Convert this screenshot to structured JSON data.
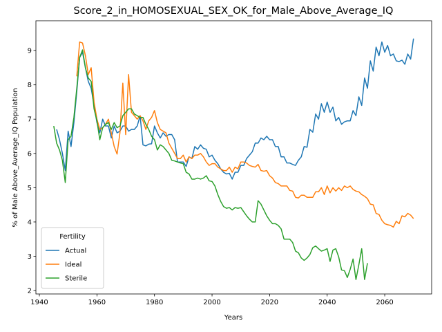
{
  "chart_data": {
    "type": "line",
    "title": "Score_2_in_HOMOSEXUAL_SEX_OK_for_Male_Above_Average_IQ",
    "x_label": "Years",
    "y_label": "% of Male Above_Average_IQ Population",
    "x": [
      1945,
      1946,
      1947,
      1948,
      1949,
      1950,
      1951,
      1952,
      1953,
      1954,
      1955,
      1956,
      1957,
      1958,
      1959,
      1960,
      1961,
      1962,
      1963,
      1964,
      1965,
      1966,
      1967,
      1968,
      1969,
      1970,
      1971,
      1972,
      1973,
      1974,
      1975,
      1976,
      1977,
      1978,
      1979,
      1980,
      1981,
      1982,
      1983,
      1984,
      1985,
      1986,
      1987,
      1988,
      1989,
      1990,
      1991,
      1992,
      1993,
      1994,
      1995,
      1996,
      1997,
      1998,
      1999,
      2000,
      2001,
      2002,
      2003,
      2004,
      2005,
      2006,
      2007,
      2008,
      2009,
      2010,
      2011,
      2012,
      2013,
      2014,
      2015,
      2016,
      2017,
      2018,
      2019,
      2020,
      2021,
      2022,
      2023,
      2024,
      2025,
      2026,
      2027,
      2028,
      2029,
      2030,
      2031,
      2032,
      2033,
      2034,
      2035,
      2036,
      2037,
      2038,
      2039,
      2040,
      2041,
      2042,
      2043,
      2044,
      2045,
      2046,
      2047,
      2048,
      2049,
      2050,
      2051,
      2052,
      2053,
      2054,
      2055,
      2056,
      2057,
      2058,
      2059,
      2060,
      2061,
      2062,
      2063,
      2064,
      2065,
      2066,
      2067,
      2068,
      2069,
      2070
    ],
    "series": [
      {
        "name": "Actual",
        "color": "#1f77b4",
        "values": [
          null,
          6.7,
          6.4,
          6.0,
          5.5,
          6.65,
          6.2,
          6.9,
          7.8,
          8.8,
          8.95,
          8.5,
          8.1,
          7.9,
          7.4,
          6.9,
          6.6,
          7.0,
          6.8,
          6.8,
          6.45,
          6.8,
          6.6,
          6.65,
          6.8,
          6.8,
          6.65,
          6.7,
          6.7,
          6.8,
          7.1,
          6.25,
          6.22,
          6.27,
          6.28,
          6.8,
          6.6,
          6.45,
          6.6,
          6.5,
          6.55,
          6.55,
          6.4,
          5.75,
          5.75,
          5.75,
          5.62,
          5.9,
          5.85,
          6.2,
          6.12,
          6.25,
          6.15,
          6.12,
          5.9,
          5.95,
          5.8,
          5.7,
          5.55,
          5.45,
          5.4,
          5.42,
          5.25,
          5.45,
          5.45,
          5.65,
          5.65,
          5.85,
          5.95,
          6.05,
          6.3,
          6.3,
          6.45,
          6.4,
          6.5,
          6.4,
          6.4,
          6.2,
          6.2,
          5.9,
          5.9,
          5.72,
          5.72,
          5.68,
          5.65,
          5.8,
          5.9,
          6.2,
          6.18,
          6.7,
          6.62,
          7.15,
          7.0,
          7.45,
          7.2,
          7.5,
          7.2,
          7.35,
          6.95,
          7.05,
          6.85,
          6.92,
          6.95,
          6.95,
          7.25,
          7.1,
          7.65,
          7.4,
          8.2,
          7.9,
          8.7,
          8.4,
          9.1,
          8.85,
          9.25,
          8.95,
          9.15,
          8.85,
          8.9,
          8.7,
          8.68,
          8.72,
          8.6,
          8.9,
          8.75,
          9.35
        ]
      },
      {
        "name": "Ideal",
        "color": "#ff7f0e",
        "values": [
          null,
          null,
          null,
          null,
          null,
          null,
          null,
          null,
          8.25,
          9.25,
          9.22,
          8.85,
          8.3,
          8.5,
          7.5,
          7.0,
          6.7,
          6.75,
          6.85,
          7.0,
          6.6,
          6.2,
          5.98,
          6.6,
          8.05,
          6.55,
          8.3,
          7.2,
          7.1,
          7.0,
          7.1,
          6.95,
          6.7,
          6.95,
          7.05,
          7.25,
          6.9,
          6.7,
          6.65,
          6.6,
          6.3,
          6.15,
          6.0,
          5.85,
          5.85,
          5.95,
          5.75,
          5.9,
          5.85,
          5.95,
          5.95,
          6.0,
          5.9,
          5.75,
          5.65,
          5.7,
          5.7,
          5.6,
          5.55,
          5.5,
          5.5,
          5.6,
          5.45,
          5.6,
          5.55,
          5.75,
          5.75,
          5.72,
          5.65,
          5.62,
          5.6,
          5.68,
          5.5,
          5.48,
          5.5,
          5.35,
          5.28,
          5.15,
          5.12,
          5.05,
          5.05,
          5.05,
          4.92,
          4.9,
          4.72,
          4.7,
          4.78,
          4.78,
          4.72,
          4.72,
          4.72,
          4.88,
          4.88,
          5.0,
          4.8,
          5.05,
          4.85,
          5.0,
          4.9,
          5.0,
          4.92,
          5.05,
          5.0,
          5.05,
          4.95,
          4.9,
          4.88,
          4.8,
          4.75,
          4.68,
          4.52,
          4.5,
          4.25,
          4.22,
          4.05,
          3.95,
          3.92,
          3.9,
          3.85,
          4.02,
          3.95,
          4.18,
          4.15,
          4.25,
          4.2,
          4.1
        ]
      },
      {
        "name": "Sterile",
        "color": "#2ca02c",
        "values": [
          6.8,
          6.3,
          6.1,
          5.8,
          5.15,
          6.4,
          6.5,
          7.05,
          7.9,
          8.8,
          9.02,
          8.5,
          8.2,
          8.1,
          7.3,
          6.95,
          6.4,
          6.75,
          6.85,
          6.9,
          6.7,
          6.9,
          6.75,
          6.8,
          7.1,
          7.2,
          7.3,
          7.3,
          7.15,
          7.1,
          7.05,
          7.05,
          6.85,
          6.7,
          6.5,
          6.4,
          6.1,
          6.25,
          6.2,
          6.1,
          6.0,
          5.8,
          5.78,
          5.75,
          5.72,
          5.7,
          5.45,
          5.4,
          5.25,
          5.25,
          5.28,
          5.25,
          5.28,
          5.35,
          5.2,
          5.18,
          5.05,
          4.8,
          4.6,
          4.45,
          4.4,
          4.42,
          4.35,
          4.42,
          4.4,
          4.42,
          4.3,
          4.18,
          4.08,
          4.0,
          4.0,
          4.62,
          4.52,
          4.35,
          4.18,
          4.05,
          3.95,
          3.95,
          3.9,
          3.8,
          3.5,
          3.5,
          3.5,
          3.4,
          3.15,
          3.1,
          2.95,
          2.88,
          2.95,
          3.05,
          3.25,
          3.3,
          3.22,
          3.15,
          3.18,
          3.22,
          2.85,
          3.18,
          3.22,
          2.98,
          2.6,
          2.58,
          2.38,
          2.62,
          2.92,
          2.32,
          2.75,
          3.22,
          2.32,
          2.8,
          null,
          null,
          null,
          null,
          null,
          null,
          null,
          null,
          null,
          null,
          null,
          null,
          null,
          null,
          null,
          null
        ]
      }
    ],
    "xlim": [
      1938.8,
      2076.3
    ],
    "ylim": [
      1.9,
      9.87
    ],
    "xticks": [
      1940,
      1960,
      1980,
      2000,
      2020,
      2040,
      2060
    ],
    "yticks": [
      2,
      3,
      4,
      5,
      6,
      7,
      8,
      9
    ],
    "legend": {
      "title": "Fertility",
      "loc": "lower left"
    }
  }
}
